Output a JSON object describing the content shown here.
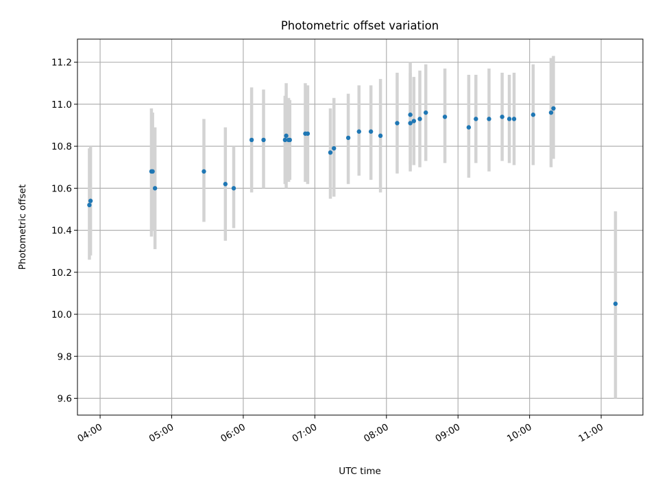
{
  "chart_data": {
    "type": "scatter",
    "title": "Photometric offset variation",
    "xlabel": "UTC time",
    "ylabel": "Photometric offset",
    "xlim": [
      "03:41",
      "11:35"
    ],
    "ylim": [
      9.52,
      11.31
    ],
    "x_ticks": [
      "04:00",
      "05:00",
      "06:00",
      "07:00",
      "08:00",
      "09:00",
      "10:00",
      "11:00"
    ],
    "y_ticks": [
      9.6,
      9.8,
      10.0,
      10.2,
      10.4,
      10.6,
      10.8,
      11.0,
      11.2
    ],
    "grid": true,
    "colors": {
      "points": "#1f77b4",
      "errorbars": "#d3d3d3",
      "grid": "#b0b0b0"
    },
    "points": [
      {
        "t": "03:51",
        "y": 10.52,
        "lo": 10.26,
        "hi": 10.79
      },
      {
        "t": "03:52",
        "y": 10.54,
        "lo": 10.28,
        "hi": 10.8
      },
      {
        "t": "04:43",
        "y": 10.68,
        "lo": 10.37,
        "hi": 10.98
      },
      {
        "t": "04:44",
        "y": 10.68,
        "lo": 10.4,
        "hi": 10.96
      },
      {
        "t": "04:46",
        "y": 10.6,
        "lo": 10.31,
        "hi": 10.89
      },
      {
        "t": "05:27",
        "y": 10.68,
        "lo": 10.44,
        "hi": 10.93
      },
      {
        "t": "05:45",
        "y": 10.62,
        "lo": 10.35,
        "hi": 10.89
      },
      {
        "t": "05:52",
        "y": 10.6,
        "lo": 10.41,
        "hi": 10.8
      },
      {
        "t": "06:07",
        "y": 10.83,
        "lo": 10.58,
        "hi": 11.08
      },
      {
        "t": "06:17",
        "y": 10.83,
        "lo": 10.6,
        "hi": 11.07
      },
      {
        "t": "06:35",
        "y": 10.83,
        "lo": 10.62,
        "hi": 11.04
      },
      {
        "t": "06:36",
        "y": 10.85,
        "lo": 10.6,
        "hi": 11.1
      },
      {
        "t": "06:38",
        "y": 10.83,
        "lo": 10.63,
        "hi": 11.03
      },
      {
        "t": "06:39",
        "y": 10.83,
        "lo": 10.64,
        "hi": 11.02
      },
      {
        "t": "06:52",
        "y": 10.86,
        "lo": 10.63,
        "hi": 11.1
      },
      {
        "t": "06:54",
        "y": 10.86,
        "lo": 10.62,
        "hi": 11.09
      },
      {
        "t": "07:13",
        "y": 10.77,
        "lo": 10.55,
        "hi": 10.98
      },
      {
        "t": "07:16",
        "y": 10.79,
        "lo": 10.56,
        "hi": 11.03
      },
      {
        "t": "07:28",
        "y": 10.84,
        "lo": 10.62,
        "hi": 11.05
      },
      {
        "t": "07:37",
        "y": 10.87,
        "lo": 10.66,
        "hi": 11.09
      },
      {
        "t": "07:47",
        "y": 10.87,
        "lo": 10.64,
        "hi": 11.09
      },
      {
        "t": "07:55",
        "y": 10.85,
        "lo": 10.58,
        "hi": 11.12
      },
      {
        "t": "08:09",
        "y": 10.91,
        "lo": 10.67,
        "hi": 11.15
      },
      {
        "t": "08:20",
        "y": 10.91,
        "lo": 10.68,
        "hi": 11.15
      },
      {
        "t": "08:20",
        "y": 10.95,
        "lo": 10.71,
        "hi": 11.2
      },
      {
        "t": "08:23",
        "y": 10.92,
        "lo": 10.71,
        "hi": 11.13
      },
      {
        "t": "08:28",
        "y": 10.93,
        "lo": 10.7,
        "hi": 11.16
      },
      {
        "t": "08:33",
        "y": 10.96,
        "lo": 10.73,
        "hi": 11.19
      },
      {
        "t": "08:49",
        "y": 10.94,
        "lo": 10.72,
        "hi": 11.17
      },
      {
        "t": "09:09",
        "y": 10.89,
        "lo": 10.65,
        "hi": 11.14
      },
      {
        "t": "09:15",
        "y": 10.93,
        "lo": 10.72,
        "hi": 11.14
      },
      {
        "t": "09:26",
        "y": 10.93,
        "lo": 10.68,
        "hi": 11.17
      },
      {
        "t": "09:37",
        "y": 10.94,
        "lo": 10.73,
        "hi": 11.15
      },
      {
        "t": "09:43",
        "y": 10.93,
        "lo": 10.72,
        "hi": 11.14
      },
      {
        "t": "09:47",
        "y": 10.93,
        "lo": 10.71,
        "hi": 11.15
      },
      {
        "t": "10:03",
        "y": 10.95,
        "lo": 10.71,
        "hi": 11.19
      },
      {
        "t": "10:18",
        "y": 10.96,
        "lo": 10.7,
        "hi": 11.22
      },
      {
        "t": "10:20",
        "y": 10.98,
        "lo": 10.74,
        "hi": 11.23
      },
      {
        "t": "11:12",
        "y": 10.05,
        "lo": 9.6,
        "hi": 10.49
      }
    ]
  }
}
